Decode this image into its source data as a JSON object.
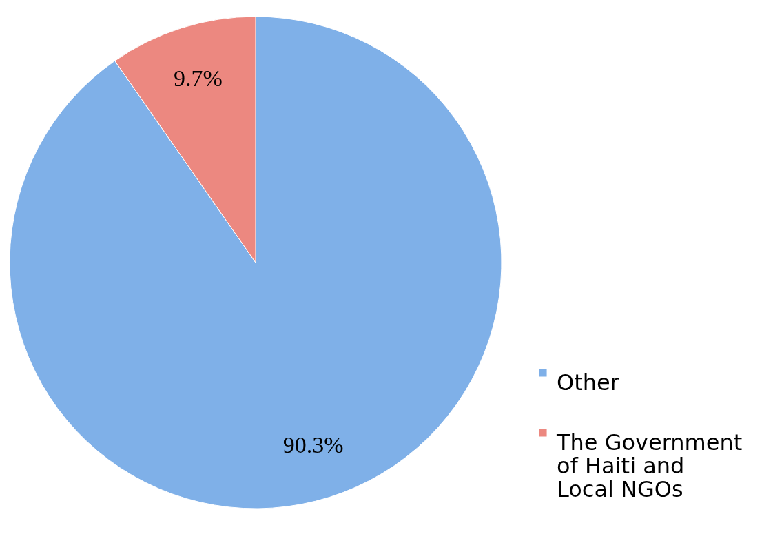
{
  "chart_data": {
    "type": "pie",
    "categories": [
      "Other",
      "The Government of Haiti and Local NGOs"
    ],
    "values": [
      90.3,
      9.7
    ],
    "colors": [
      "#7fb0e8",
      "#ec8880"
    ],
    "value_labels": [
      "90.3%",
      "9.7%"
    ],
    "legend": "right"
  }
}
